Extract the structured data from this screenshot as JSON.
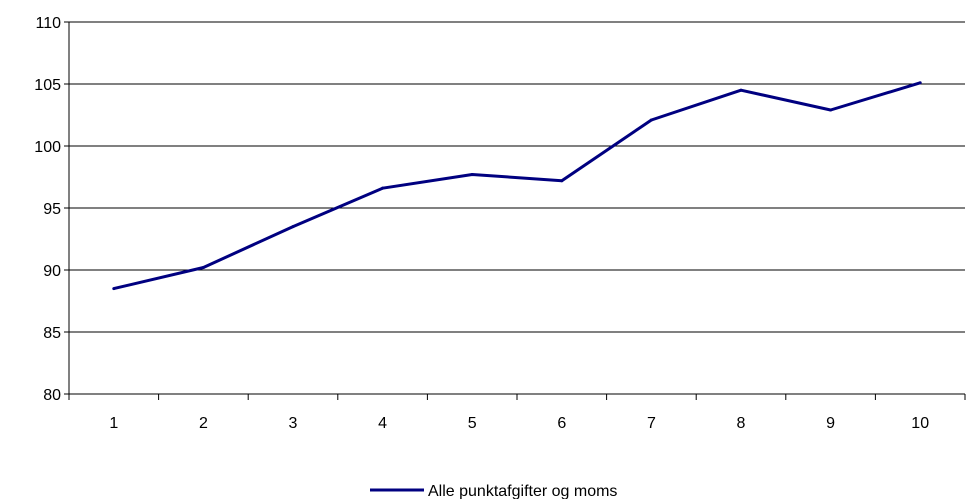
{
  "chart_data": {
    "type": "line",
    "x": [
      1,
      2,
      3,
      4,
      5,
      6,
      7,
      8,
      9,
      10
    ],
    "series": [
      {
        "name": "Alle punktafgifter og moms",
        "values": [
          88.5,
          90.2,
          93.5,
          96.6,
          97.7,
          97.2,
          102.1,
          104.5,
          102.9,
          105.1
        ]
      }
    ],
    "title": "",
    "xlabel": "",
    "ylabel": "",
    "ylim": [
      80,
      110
    ],
    "yticks": [
      80,
      85,
      90,
      95,
      100,
      105,
      110
    ],
    "grid": "horizontal",
    "legend": "bottom",
    "colors": {
      "series": "#000080",
      "grid": "#000000",
      "background": "#ffffff"
    }
  }
}
